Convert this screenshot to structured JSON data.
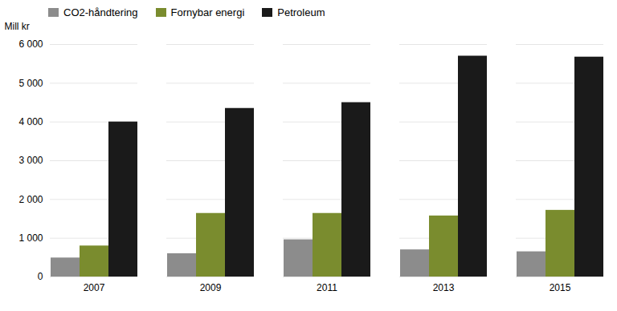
{
  "chart_data": {
    "type": "bar",
    "categories": [
      "2007",
      "2009",
      "2011",
      "2013",
      "2015"
    ],
    "series": [
      {
        "name": "CO2-håndtering",
        "color": "#8c8c8c",
        "values": [
          490,
          600,
          960,
          700,
          650
        ]
      },
      {
        "name": "Fornybar energi",
        "color": "#7a8c2e",
        "values": [
          800,
          1640,
          1640,
          1575,
          1720
        ]
      },
      {
        "name": "Petroleum",
        "color": "#1a1a1a",
        "values": [
          4000,
          4350,
          4500,
          5700,
          5675
        ]
      }
    ],
    "y_label": "Mill kr",
    "ylim": [
      0,
      6000
    ],
    "yticks": [
      0,
      {
        "value": 1000,
        "label": "1 000"
      },
      {
        "value": 2000,
        "label": "2 000"
      },
      {
        "value": 3000,
        "label": "3 000"
      },
      {
        "value": 4000,
        "label": "4 000"
      },
      {
        "value": 5000,
        "label": "5 000"
      },
      {
        "value": 6000,
        "label": "6 000"
      }
    ],
    "grid": true,
    "legend": "top"
  }
}
